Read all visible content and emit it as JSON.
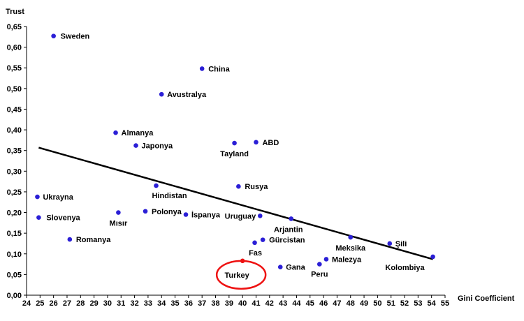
{
  "chart_data": {
    "type": "scatter",
    "xlabel": "Gini Coefficient",
    "ylabel": "Trust",
    "xlim": [
      24,
      55
    ],
    "ylim": [
      0,
      0.65
    ],
    "x_ticks": [
      "24",
      "25",
      "26",
      "27",
      "28",
      "29",
      "30",
      "31",
      "32",
      "33",
      "34",
      "35",
      "36",
      "37",
      "38",
      "39",
      "40",
      "41",
      "42",
      "43",
      "44",
      "45",
      "46",
      "47",
      "48",
      "49",
      "50",
      "51",
      "52",
      "53",
      "54",
      "55"
    ],
    "y_ticks": [
      "0,00",
      "0,05",
      "0,10",
      "0,15",
      "0,20",
      "0,25",
      "0,30",
      "0,35",
      "0,40",
      "0,45",
      "0,50",
      "0,55",
      "0,60",
      "0,65"
    ],
    "grid": false,
    "colors": {
      "point": "#2b1fd6",
      "highlight": "#ee1111",
      "trendline": "#000000"
    },
    "points": [
      {
        "label": "Sweden",
        "x": 26.0,
        "y": 0.627
      },
      {
        "label": "China",
        "x": 37.0,
        "y": 0.548
      },
      {
        "label": "Avustralya",
        "x": 34.0,
        "y": 0.486
      },
      {
        "label": "Almanya",
        "x": 30.6,
        "y": 0.393
      },
      {
        "label": "ABD",
        "x": 41.0,
        "y": 0.37
      },
      {
        "label": "Tayland",
        "x": 39.4,
        "y": 0.368
      },
      {
        "label": "Japonya",
        "x": 32.1,
        "y": 0.362
      },
      {
        "label": "Hindistan",
        "x": 33.6,
        "y": 0.265
      },
      {
        "label": "Rusya",
        "x": 39.7,
        "y": 0.263
      },
      {
        "label": "Ukrayna",
        "x": 24.8,
        "y": 0.238
      },
      {
        "label": "Polonya",
        "x": 32.8,
        "y": 0.203
      },
      {
        "label": "Mısır",
        "x": 30.8,
        "y": 0.2
      },
      {
        "label": "İspanya",
        "x": 35.8,
        "y": 0.195
      },
      {
        "label": "Uruguay",
        "x": 41.3,
        "y": 0.192
      },
      {
        "label": "Slovenya",
        "x": 24.9,
        "y": 0.188
      },
      {
        "label": "Arjantin",
        "x": 43.6,
        "y": 0.185
      },
      {
        "label": "Meksika",
        "x": 48.0,
        "y": 0.14
      },
      {
        "label": "Romanya",
        "x": 27.2,
        "y": 0.135
      },
      {
        "label": "Gürcistan",
        "x": 41.5,
        "y": 0.134
      },
      {
        "label": "Fas",
        "x": 40.9,
        "y": 0.127
      },
      {
        "label": "Şili",
        "x": 50.9,
        "y": 0.125
      },
      {
        "label": "Kolombiya",
        "x": 54.1,
        "y": 0.093
      },
      {
        "label": "Malezya",
        "x": 46.2,
        "y": 0.087
      },
      {
        "label": "Turkey",
        "x": 40.0,
        "y": 0.083,
        "highlight": true
      },
      {
        "label": "Peru",
        "x": 45.7,
        "y": 0.075
      },
      {
        "label": "Gana",
        "x": 42.8,
        "y": 0.068
      }
    ],
    "trendline": {
      "x": [
        24.9,
        54.1
      ],
      "y": [
        0.357,
        0.087
      ]
    }
  }
}
